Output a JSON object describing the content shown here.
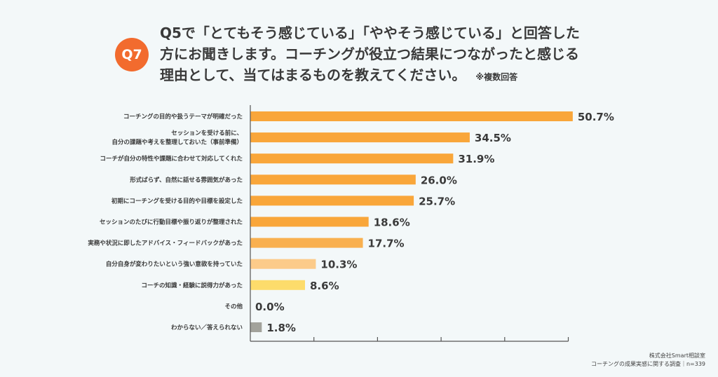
{
  "header": {
    "badge": "Q7",
    "title_lines": [
      "Q5で「とてもそう感じている」「ややそう感じている」と回答した",
      "方にお聞きします。コーチングが役立つ結果につながったと感じる",
      "理由として、当てはまるものを教えてください。"
    ],
    "note": "※複数回答"
  },
  "chart_data": {
    "type": "bar",
    "orientation": "horizontal",
    "categories": [
      "コーチングの目的や扱うテーマが明確だった",
      "セッションを受ける前に、\n自分の課題や考えを整理しておいた（事前準備）",
      "コーチが自分の特性や課題に合わせて対応してくれた",
      "形式ばらず、自然に話せる雰囲気があった",
      "初期にコーチングを受ける目的や目標を設定した",
      "セッションのたびに行動目標や振り返りが整理された",
      "実務や状況に即したアドバイス・フィードバックがあった",
      "自分自身が変わりたいという強い意欲を持っていた",
      "コーチの知識・経験に説得力があった",
      "その他",
      "わからない／答えられない"
    ],
    "values": [
      50.7,
      34.5,
      31.9,
      26.0,
      25.7,
      18.6,
      17.7,
      10.3,
      8.6,
      0.0,
      1.8
    ],
    "value_labels": [
      "50.7%",
      "34.5%",
      "31.9%",
      "26.0%",
      "25.7%",
      "18.6%",
      "17.7%",
      "10.3%",
      "8.6%",
      "0.0%",
      "1.8%"
    ],
    "colors": [
      "#f9a63a",
      "#f9a63a",
      "#f9a63a",
      "#f9a63a",
      "#f9a63a",
      "#f9a63a",
      "#f9b04f",
      "#fccb8a",
      "#fddc6b",
      "#f9a63a",
      "#a2a29b"
    ],
    "xlim": [
      0,
      50
    ],
    "xtick_step": 10,
    "grid": false,
    "unit": "%"
  },
  "footer": {
    "company": "株式会社Smart相談室",
    "survey": "コーチングの成果実感に関する調査｜n=339"
  }
}
